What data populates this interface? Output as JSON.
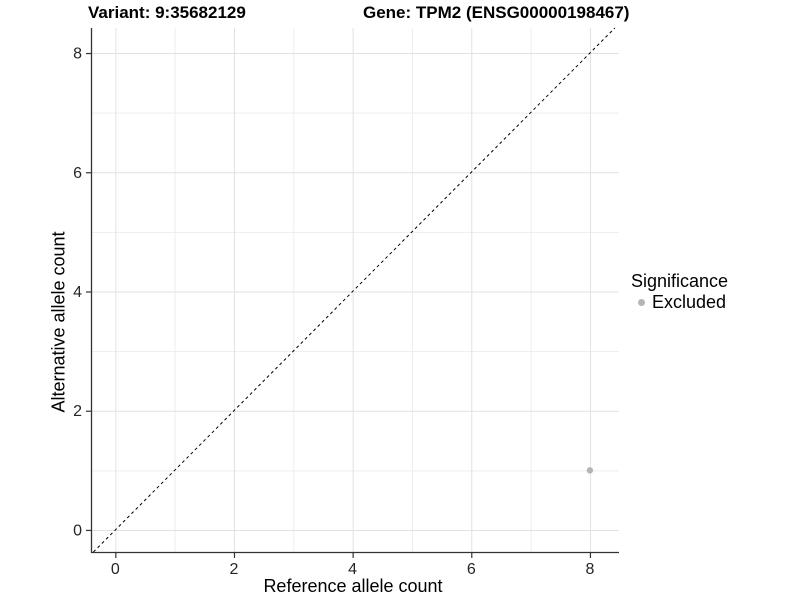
{
  "chart_data": {
    "type": "scatter",
    "titles": {
      "left": "Variant: 9:35682129",
      "right": "Gene: TPM2 (ENSG00000198467)"
    },
    "xlabel": "Reference allele count",
    "ylabel": "Alternative allele count",
    "xlim": [
      -0.41,
      8.49
    ],
    "ylim": [
      -0.37,
      8.42
    ],
    "xticks": [
      0,
      2,
      4,
      6,
      8
    ],
    "yticks": [
      0,
      2,
      4,
      6,
      8
    ],
    "minor_xticks": [
      1,
      3,
      5,
      7
    ],
    "minor_yticks": [
      1,
      3,
      5,
      7
    ],
    "grid": true,
    "points": [
      {
        "x": 8,
        "y": 1,
        "series": "Excluded"
      }
    ],
    "reference_line": {
      "equation": "y = x",
      "style": "dashed"
    },
    "legend": {
      "title": "Significance",
      "position": "right",
      "items": [
        {
          "label": "Excluded",
          "color": "#b5b5b5"
        }
      ]
    },
    "colors": {
      "point": "#b5b5b5",
      "grid_major": "#e2e2e2",
      "grid_minor": "#ededed",
      "axis_line": "#333333",
      "reference_line": "#000000",
      "tick_text": "#262626"
    }
  }
}
